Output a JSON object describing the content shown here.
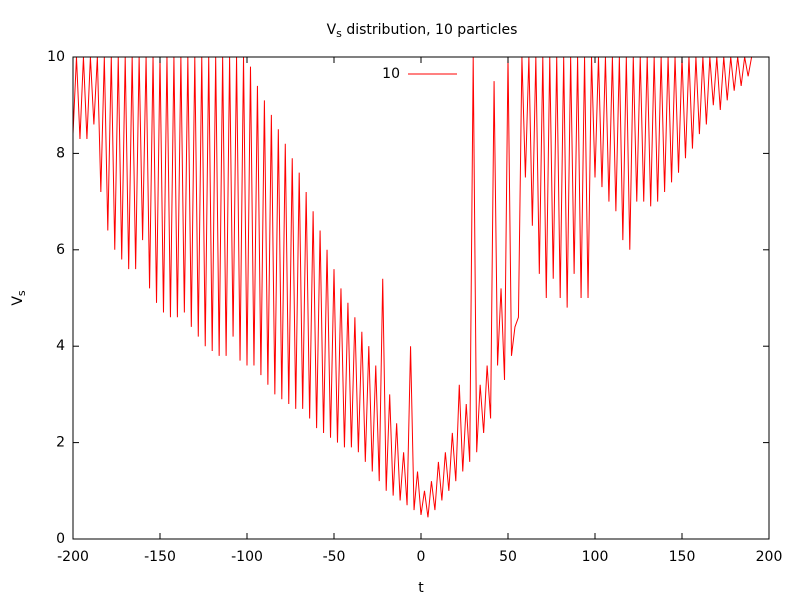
{
  "chart_data": {
    "type": "line",
    "title": {
      "main": "V",
      "sub": "s",
      "rest": " distribution, 10 particles"
    },
    "xlabel": "t",
    "ylabel": {
      "main": "V",
      "sub": "s"
    },
    "xlim": [
      -200,
      200
    ],
    "xticks": [
      -200,
      -150,
      -100,
      -50,
      0,
      50,
      100,
      150,
      200
    ],
    "ylim": [
      0,
      10
    ],
    "yticks": [
      0,
      2,
      4,
      6,
      8,
      10
    ],
    "grid": false,
    "legend": "top",
    "series": [
      {
        "name": "10",
        "color": "#ff0000",
        "x": [
          -200,
          -198,
          -196,
          -194,
          -192,
          -190,
          -188,
          -186,
          -184,
          -182,
          -180,
          -178,
          -176,
          -174,
          -172,
          -170,
          -168,
          -166,
          -164,
          -162,
          -160,
          -158,
          -156,
          -154,
          -152,
          -150,
          -148,
          -146,
          -144,
          -142,
          -140,
          -138,
          -136,
          -134,
          -132,
          -130,
          -128,
          -126,
          -124,
          -122,
          -120,
          -118,
          -116,
          -114,
          -112,
          -110,
          -108,
          -106,
          -104,
          -102,
          -100,
          -98,
          -96,
          -94,
          -92,
          -90,
          -88,
          -86,
          -84,
          -82,
          -80,
          -78,
          -76,
          -74,
          -72,
          -70,
          -68,
          -66,
          -64,
          -62,
          -60,
          -58,
          -56,
          -54,
          -52,
          -50,
          -48,
          -46,
          -44,
          -42,
          -40,
          -38,
          -36,
          -34,
          -32,
          -30,
          -28,
          -26,
          -24,
          -22,
          -20,
          -18,
          -16,
          -14,
          -12,
          -10,
          -8,
          -6,
          -4,
          -2,
          0,
          2,
          4,
          6,
          8,
          10,
          12,
          14,
          16,
          18,
          20,
          22,
          24,
          26,
          28,
          30,
          32,
          34,
          36,
          38,
          40,
          42,
          44,
          46,
          48,
          50,
          52,
          54,
          56,
          58,
          60,
          62,
          64,
          66,
          68,
          70,
          72,
          74,
          76,
          78,
          80,
          82,
          84,
          86,
          88,
          90,
          92,
          94,
          96,
          98,
          100,
          102,
          104,
          106,
          108,
          110,
          112,
          114,
          116,
          118,
          120,
          122,
          124,
          126,
          128,
          130,
          132,
          134,
          136,
          138,
          140,
          142,
          144,
          146,
          148,
          150,
          152,
          154,
          156,
          158,
          160,
          162,
          164,
          166,
          168,
          170,
          172,
          174,
          176,
          178,
          180,
          182,
          184,
          186,
          188,
          190
        ],
        "values": [
          8.4,
          10,
          8.3,
          10,
          8.3,
          10,
          8.6,
          10,
          7.2,
          10,
          6.4,
          10,
          6.0,
          10,
          5.8,
          10,
          5.6,
          10,
          5.6,
          10,
          6.2,
          10,
          5.2,
          10,
          4.9,
          10,
          4.7,
          10,
          4.6,
          10,
          4.6,
          10,
          4.7,
          10,
          4.4,
          10,
          4.2,
          10,
          4.0,
          10,
          3.9,
          10,
          3.8,
          10,
          3.8,
          10,
          4.2,
          10,
          3.7,
          10,
          3.6,
          9.8,
          3.6,
          9.4,
          3.4,
          9.1,
          3.2,
          8.8,
          3.0,
          8.5,
          2.9,
          8.2,
          2.8,
          7.9,
          2.7,
          7.6,
          2.7,
          7.2,
          2.5,
          6.8,
          2.3,
          6.4,
          2.2,
          6.0,
          2.1,
          5.6,
          2.0,
          5.2,
          1.9,
          4.9,
          1.9,
          4.6,
          1.8,
          4.3,
          1.6,
          4.0,
          1.4,
          3.6,
          1.2,
          5.4,
          1.0,
          3.0,
          0.9,
          2.4,
          0.8,
          1.8,
          0.7,
          4.0,
          0.6,
          1.4,
          0.5,
          1.0,
          0.45,
          1.2,
          0.6,
          1.6,
          0.8,
          1.8,
          1.0,
          2.2,
          1.2,
          3.2,
          1.4,
          2.8,
          1.6,
          10,
          1.8,
          3.2,
          2.2,
          3.6,
          2.5,
          9.5,
          3.6,
          5.2,
          3.3,
          10,
          3.8,
          4.4,
          4.6,
          10,
          7.5,
          10,
          6.5,
          10,
          5.5,
          10,
          5.0,
          10,
          5.4,
          10,
          5.0,
          10,
          4.8,
          10,
          5.5,
          10,
          5.0,
          10,
          5.0,
          10,
          7.5,
          10,
          7.3,
          10,
          7.0,
          10,
          6.8,
          10,
          6.2,
          10,
          6.0,
          10,
          7.0,
          10,
          7.0,
          10,
          6.9,
          10,
          7.0,
          10,
          7.2,
          10,
          7.4,
          10,
          7.6,
          10,
          7.9,
          10,
          8.1,
          10,
          8.4,
          10,
          8.6,
          10,
          9.0,
          10,
          8.9,
          10,
          9.1,
          10,
          9.3,
          10,
          9.4,
          10,
          9.6,
          10
        ]
      }
    ]
  }
}
